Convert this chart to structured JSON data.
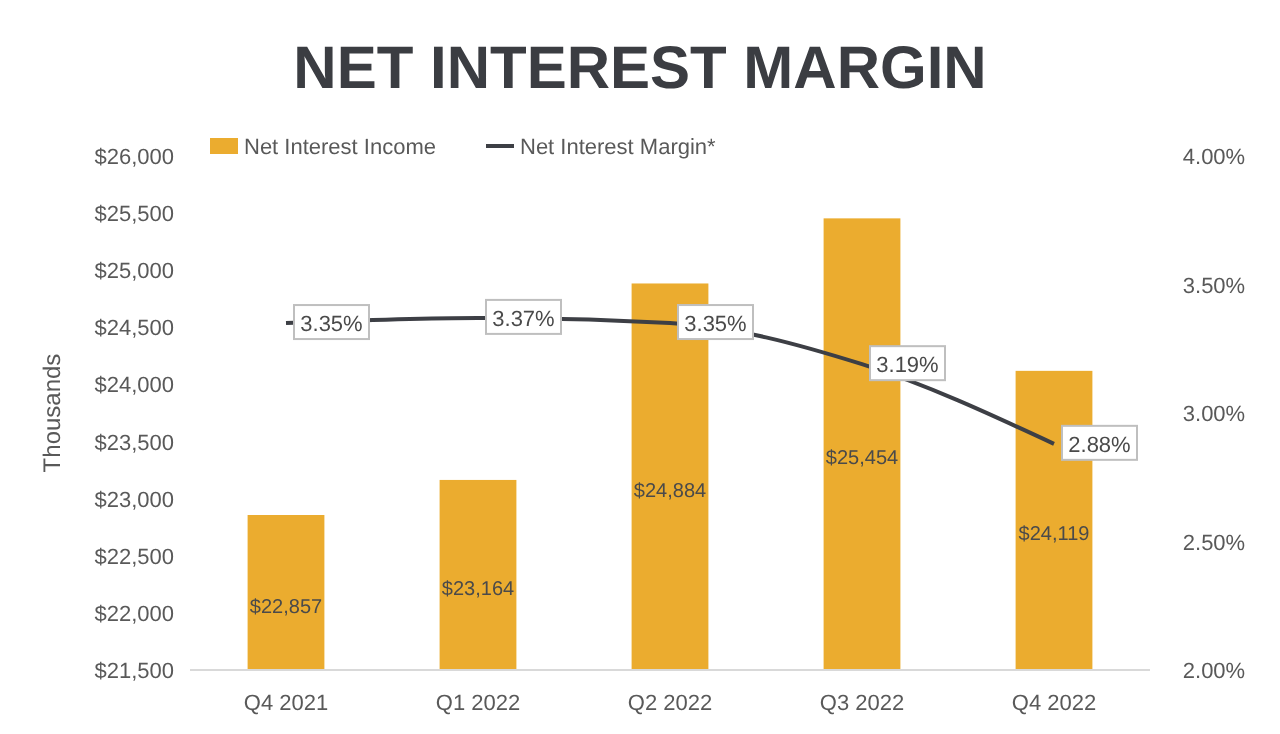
{
  "chart_data": {
    "type": "bar",
    "title": "NET INTEREST MARGIN",
    "ylabel": "Thousands",
    "categories": [
      "Q4 2021",
      "Q1 2022",
      "Q2 2022",
      "Q3 2022",
      "Q4 2022"
    ],
    "series": [
      {
        "name": "Net Interest Income",
        "color": "#ebac2f",
        "values": [
          22857,
          23164,
          24884,
          25454,
          24119
        ],
        "value_labels": [
          "$22,857",
          "$23,164",
          "$24,884",
          "$25,454",
          "$24,119"
        ]
      },
      {
        "name": "Net Interest Margin*",
        "type": "line",
        "axis": "y2",
        "color": "#3d3f45",
        "values": [
          3.35,
          3.37,
          3.35,
          3.19,
          2.88
        ],
        "value_labels": [
          "3.35%",
          "3.37%",
          "3.35%",
          "3.19%",
          "2.88%"
        ]
      }
    ],
    "ylim": [
      21500,
      26000
    ],
    "yticks": [
      {
        "value": 21500,
        "label": "$21,500"
      },
      {
        "value": 22000,
        "label": "$22,000"
      },
      {
        "value": 22500,
        "label": "$22,500"
      },
      {
        "value": 23000,
        "label": "$23,000"
      },
      {
        "value": 23500,
        "label": "$23,500"
      },
      {
        "value": 24000,
        "label": "$24,000"
      },
      {
        "value": 24500,
        "label": "$24,500"
      },
      {
        "value": 25000,
        "label": "$25,000"
      },
      {
        "value": 25500,
        "label": "$25,500"
      },
      {
        "value": 26000,
        "label": "$26,000"
      }
    ],
    "y2lim": [
      2,
      4
    ],
    "y2ticks": [
      {
        "value": 2,
        "label": "2.00%"
      },
      {
        "value": 2.5,
        "label": "2.50%"
      },
      {
        "value": 3,
        "label": "3.00%"
      },
      {
        "value": 3.5,
        "label": "3.50%"
      },
      {
        "value": 4,
        "label": "4.00%"
      }
    ],
    "legend": "top left",
    "grid": false,
    "marker": "none",
    "line_style": "solid"
  }
}
